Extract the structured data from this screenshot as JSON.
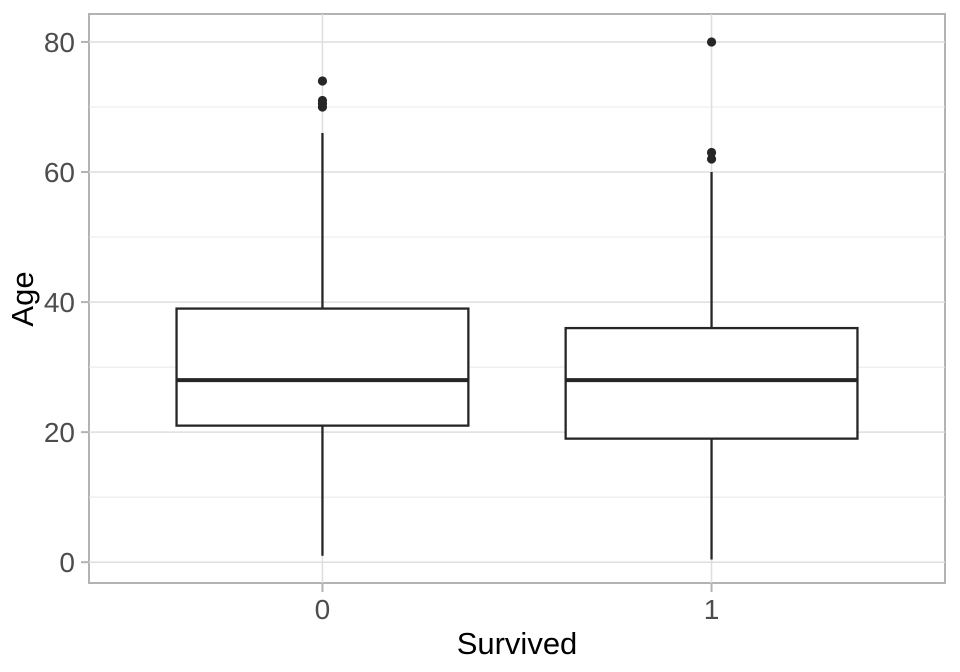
{
  "figure": {
    "background": "#ffffff"
  },
  "chart_data": {
    "type": "boxplot",
    "title": "",
    "xlabel": "Survived",
    "ylabel": "Age",
    "categories": [
      "0",
      "1"
    ],
    "series": [
      {
        "category": "0",
        "whisker_low": 1,
        "q1": 21,
        "median": 28,
        "q3": 39,
        "whisker_high": 66,
        "outliers": [
          70,
          70.5,
          71,
          74
        ]
      },
      {
        "category": "1",
        "whisker_low": 0.42,
        "q1": 19,
        "median": 28,
        "q3": 36,
        "whisker_high": 60,
        "outliers": [
          62,
          63,
          80
        ]
      }
    ],
    "y_axis": {
      "ticks": [
        0,
        20,
        40,
        60,
        80
      ],
      "minor_ticks": [
        10,
        30,
        50,
        70
      ],
      "view_min": -3.2,
      "view_max": 84.3
    },
    "x_axis": {
      "tick_labels": [
        "0",
        "1"
      ]
    },
    "grid": "on",
    "legend": "none",
    "colors": {
      "box_stroke": "#262626",
      "box_fill": "#ffffff",
      "panel_background": "#ffffff",
      "panel_border": "#b3b3b3",
      "grid_major": "#dedede",
      "grid_minor": "#e8e8e8",
      "tick_mark": "#b3b3b3",
      "tick_label": "#4d4d4d",
      "axis_title": "#000000"
    }
  }
}
